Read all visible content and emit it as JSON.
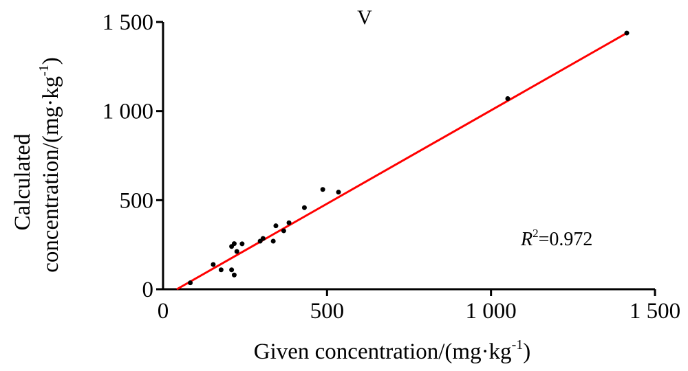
{
  "chart_data": {
    "type": "scatter",
    "title": "V",
    "xlabel": "Given concentration/(mg·kg",
    "xlabel_sup": "-1",
    "xlabel_end": ")",
    "ylabel_line1": "Calculated",
    "ylabel_line2": "concentration/(mg·kg",
    "ylabel_sup": "-1",
    "ylabel_end": ")",
    "xlim": [
      0,
      1500
    ],
    "ylim": [
      0,
      1500
    ],
    "xticks": [
      0,
      500,
      1000,
      1500
    ],
    "xtick_labels": [
      "0",
      "500",
      "1 000",
      "1 500"
    ],
    "yticks": [
      0,
      500,
      1000,
      1500
    ],
    "ytick_labels": [
      "0",
      "500",
      "1 000",
      "1 500"
    ],
    "grid": false,
    "points": [
      {
        "x": 83,
        "y": 36
      },
      {
        "x": 153,
        "y": 139
      },
      {
        "x": 177,
        "y": 109
      },
      {
        "x": 209,
        "y": 109
      },
      {
        "x": 217,
        "y": 80
      },
      {
        "x": 209,
        "y": 240
      },
      {
        "x": 217,
        "y": 256
      },
      {
        "x": 225,
        "y": 212
      },
      {
        "x": 241,
        "y": 255
      },
      {
        "x": 296,
        "y": 270
      },
      {
        "x": 305,
        "y": 285
      },
      {
        "x": 336,
        "y": 270
      },
      {
        "x": 344,
        "y": 356
      },
      {
        "x": 368,
        "y": 328
      },
      {
        "x": 384,
        "y": 373
      },
      {
        "x": 431,
        "y": 458
      },
      {
        "x": 487,
        "y": 560
      },
      {
        "x": 535,
        "y": 545
      },
      {
        "x": 1051,
        "y": 1070
      },
      {
        "x": 1414,
        "y": 1438
      }
    ],
    "fit_line": {
      "x_start": 42,
      "y_start": 0,
      "x_end": 1414,
      "y_end": 1438,
      "color": "#ff0000"
    },
    "annotation": {
      "r": "R",
      "sup": "2",
      "value": "=0.972"
    },
    "point_color": "#000000"
  }
}
